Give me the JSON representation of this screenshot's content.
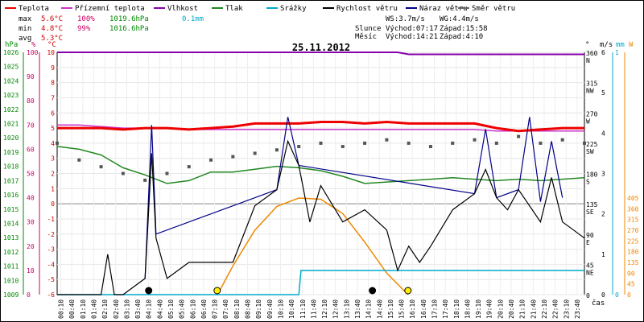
{
  "chart_data": {
    "type": "line",
    "title": "25.11.2012",
    "x_axis_label": "čas",
    "x_ticks": [
      "00:10",
      "00:40",
      "01:10",
      "01:40",
      "02:10",
      "02:40",
      "03:10",
      "03:40",
      "04:10",
      "04:40",
      "05:10",
      "05:40",
      "06:10",
      "06:40",
      "07:10",
      "07:40",
      "08:10",
      "08:40",
      "09:10",
      "09:40",
      "10:10",
      "10:40",
      "11:10",
      "11:40",
      "12:10",
      "12:40",
      "13:10",
      "13:40",
      "14:10",
      "14:40",
      "15:10",
      "15:40",
      "16:10",
      "16:40",
      "17:10",
      "17:40",
      "18:10",
      "18:40",
      "19:10",
      "19:40",
      "20:10",
      "20:40",
      "21:10",
      "21:40",
      "22:10",
      "22:40",
      "23:10",
      "23:40"
    ],
    "legend": [
      {
        "label": "Teplota",
        "color": "#ee0000"
      },
      {
        "label": "Přízemní teplota",
        "color": "#cc33cc"
      },
      {
        "label": "Vlhkost",
        "color": "#8800aa"
      },
      {
        "label": "Tlak",
        "color": "#228822"
      },
      {
        "label": "Srážky",
        "color": "#00aacc"
      },
      {
        "label": "Rychlost větru",
        "color": "#000000"
      },
      {
        "label": "Náraz větru",
        "color": "#000088"
      },
      {
        "label": "Směr větru",
        "color": "#666666"
      }
    ],
    "stats": {
      "labels": [
        "max",
        "min",
        "avg"
      ],
      "temp": [
        "5.6°C",
        "4.8°C",
        "5.3°C"
      ],
      "humidity": [
        "100%",
        "99%",
        ""
      ],
      "pressure": [
        "1019.6hPa",
        "1016.6hPa",
        ""
      ],
      "rain": [
        "0.1mm",
        "",
        ""
      ]
    },
    "info": {
      "ws": "WS:3.7m/s",
      "wg": "WG:4.4m/s",
      "sun_label": "Slunce",
      "sun_rise": "Východ:07:17",
      "sun_set": "Západ:15:58",
      "moon_label": "Měsíc",
      "moon_rise": "Východ:14:21",
      "moon_set": "Západ:4:10"
    },
    "axes": {
      "pressure": {
        "unit": "hPa",
        "ticks": [
          "1026",
          "1025",
          "1024",
          "1023",
          "1022",
          "1021",
          "1020",
          "1019",
          "1018",
          "1017",
          "1016",
          "1015",
          "1014",
          "1013",
          "1012",
          "1011",
          "1010",
          "1009"
        ],
        "color": "#008800"
      },
      "humidity": {
        "unit": "%",
        "ticks": [
          "100",
          "90",
          "80",
          "70",
          "60",
          "50",
          "40",
          "30",
          "20",
          "10",
          "0"
        ],
        "color": "#cc0066"
      },
      "temperature": {
        "unit": "°C",
        "range": [
          -6,
          10
        ],
        "ticks": [
          "10",
          "9",
          "8",
          "7",
          "6",
          "5",
          "4",
          "3",
          "2",
          "1",
          "0",
          "-1",
          "-2",
          "-3",
          "-4",
          "-5",
          "-6"
        ],
        "color": "#cc0000"
      },
      "wind_dir": {
        "unit": "°",
        "ticks": [
          "360",
          "315",
          "270",
          "225",
          "180",
          "135",
          "90",
          "45",
          "0"
        ],
        "labels": [
          "N",
          "NW",
          "W",
          "SW",
          "S",
          "SE",
          "E",
          "NE",
          ""
        ]
      },
      "wind_speed": {
        "unit": "m/s",
        "ticks": [
          "6",
          "5",
          "4",
          "3",
          "2",
          "1",
          "0"
        ]
      },
      "rain": {
        "unit": "mm",
        "ticks": [
          "1",
          "0"
        ],
        "color": "#00aacc"
      },
      "solar": {
        "unit": "W",
        "ticks": [
          "405",
          "360",
          "315",
          "270",
          "225",
          "180",
          "135",
          "90",
          "45",
          "0"
        ],
        "color": "#ee8800"
      }
    },
    "series": [
      {
        "name": "Teplota",
        "x": [
          0,
          1,
          2,
          3,
          4,
          5,
          6,
          7,
          8,
          9,
          10,
          11,
          12,
          13,
          14,
          15,
          16,
          17,
          18,
          19,
          20,
          21,
          22,
          23,
          24
        ],
        "values": [
          5.0,
          5.0,
          5.0,
          4.9,
          5.0,
          5.0,
          4.9,
          5.0,
          5.1,
          5.3,
          5.3,
          5.3,
          5.4,
          5.4,
          5.3,
          5.4,
          5.3,
          5.3,
          5.3,
          5.3,
          5.0,
          4.8,
          4.9,
          5.0,
          5.0
        ]
      },
      {
        "name": "Přízemní teplota",
        "x": [
          0,
          1,
          2,
          3,
          4,
          5,
          6,
          7,
          8,
          9,
          10,
          11,
          12,
          13,
          14,
          15,
          16,
          17,
          18,
          19,
          20,
          21,
          22,
          23,
          24
        ],
        "values": [
          5.2,
          5.2,
          5.1,
          5.0,
          5.0,
          5.0,
          4.9,
          4.9,
          4.9,
          4.9,
          4.9,
          4.9,
          4.9,
          4.9,
          4.9,
          4.9,
          4.9,
          4.9,
          4.9,
          4.9,
          4.8,
          4.8,
          4.8,
          4.8,
          4.8
        ]
      },
      {
        "name": "Vlhkost",
        "x": [
          0,
          12,
          15.5,
          16,
          24
        ],
        "values": [
          100,
          100,
          100,
          99,
          99
        ]
      },
      {
        "name": "Tlak",
        "x": [
          0,
          1,
          2,
          3,
          4,
          5,
          6,
          7,
          8,
          9,
          10,
          11,
          12,
          13,
          14,
          15,
          16,
          17,
          18,
          19,
          20,
          21,
          22,
          23,
          24
        ],
        "values": [
          1019.4,
          1019.2,
          1018.8,
          1017.9,
          1017.4,
          1016.8,
          1017.0,
          1017.6,
          1017.6,
          1017.8,
          1018.0,
          1017.9,
          1017.7,
          1017.3,
          1016.8,
          1016.9,
          1017.0,
          1017.1,
          1017.2,
          1017.1,
          1017.0,
          1017.1,
          1017.0,
          1017.1,
          1017.2
        ]
      },
      {
        "name": "Srážky",
        "x": [
          0,
          11.0,
          11.1,
          24
        ],
        "values": [
          0,
          0,
          0.1,
          0.1
        ]
      },
      {
        "name": "Rychlost větru",
        "x": [
          0,
          1,
          2,
          2.3,
          2.6,
          3,
          4,
          4.3,
          4.5,
          5,
          6,
          7,
          8,
          9,
          10,
          10.5,
          11,
          11.5,
          12,
          13,
          14,
          15,
          15.5,
          16,
          16.5,
          17,
          18,
          19,
          19.5,
          20,
          20.5,
          21,
          21.5,
          22,
          22.5,
          23,
          23.5,
          24
        ],
        "values": [
          0,
          0,
          0,
          1.0,
          0,
          0,
          0.4,
          3.5,
          1.4,
          0.4,
          0.8,
          0.8,
          0.8,
          2.2,
          2.6,
          3.8,
          3.2,
          1.8,
          2.7,
          1.8,
          2.1,
          1.6,
          0.6,
          1.2,
          0.8,
          1.2,
          2.1,
          2.5,
          3.1,
          2.4,
          2.1,
          2.6,
          2.2,
          1.8,
          2.9,
          1.8,
          1.6,
          1.4
        ]
      },
      {
        "name": "Náraz větru",
        "x": [
          4,
          4.3,
          4.5,
          10,
          10.5,
          11,
          19,
          19.5,
          20,
          21,
          21.5,
          22,
          22.5,
          23
        ],
        "values": [
          0.4,
          4.2,
          1.5,
          2.6,
          4.4,
          3.2,
          2.5,
          4.1,
          2.4,
          2.6,
          4.4,
          2.3,
          3.8,
          2.4
        ]
      },
      {
        "name": "Solar",
        "x": [
          7.3,
          8,
          9,
          10,
          11,
          12,
          13,
          14,
          15,
          15.97
        ],
        "values": [
          0,
          120,
          270,
          370,
          405,
          400,
          340,
          220,
          90,
          0
        ]
      }
    ],
    "wind_direction_deg_samples": [
      225,
      200,
      190,
      180,
      170,
      180,
      190,
      200,
      205,
      210,
      215,
      220,
      225,
      220,
      225,
      230,
      225,
      220,
      225,
      230,
      225,
      235,
      225,
      230,
      225
    ],
    "markers": [
      {
        "time": "04:10",
        "kind": "moon-set"
      },
      {
        "time": "07:17",
        "kind": "sunrise"
      },
      {
        "time": "14:21",
        "kind": "moon-rise"
      },
      {
        "time": "15:58",
        "kind": "sunset"
      }
    ]
  }
}
